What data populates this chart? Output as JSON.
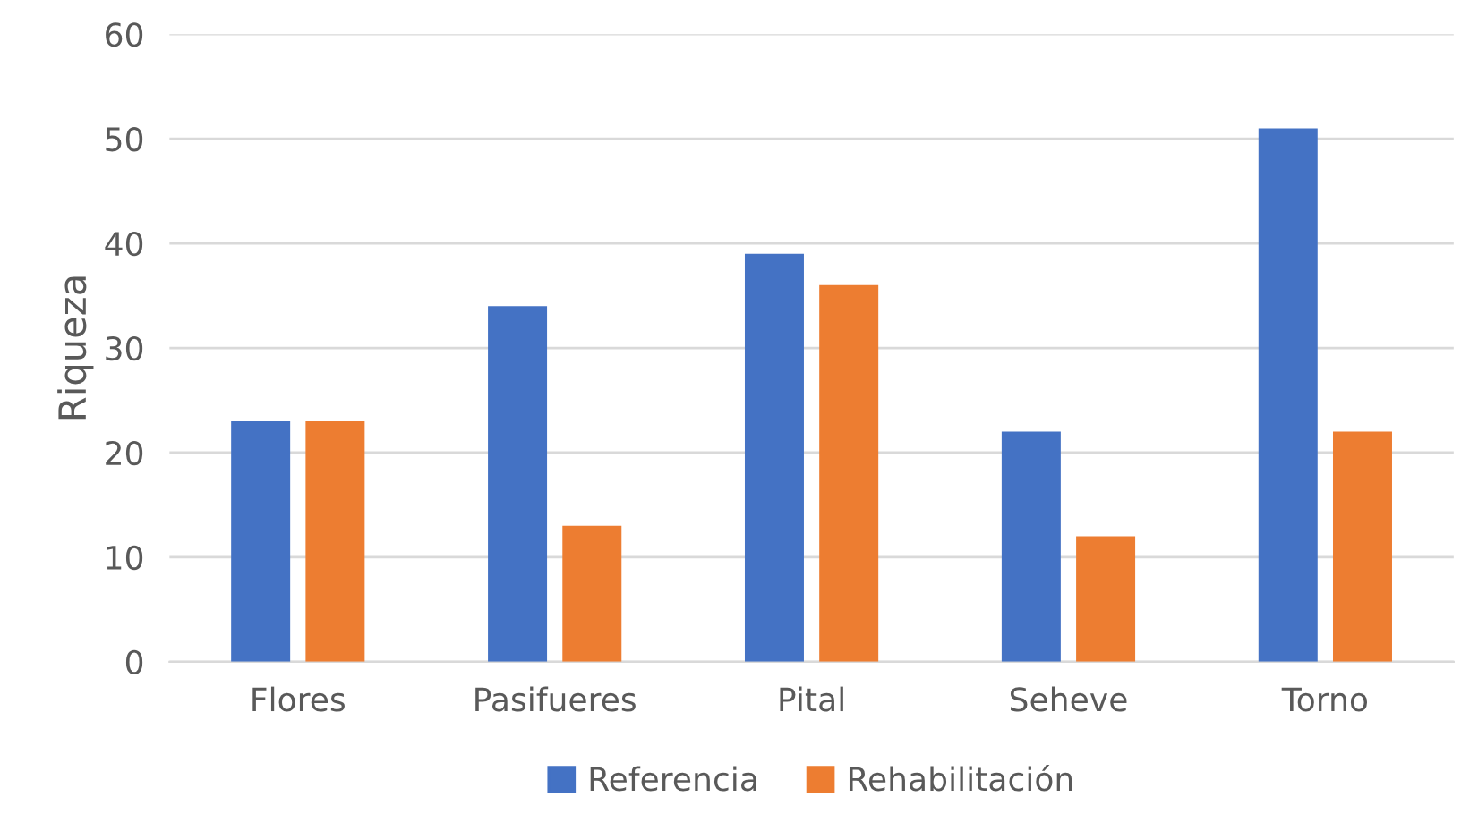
{
  "chart_data": {
    "type": "bar",
    "ylabel": "Riqueza",
    "categories": [
      "Flores",
      "Pasifueres",
      "Pital",
      "Seheve",
      "Torno"
    ],
    "series": [
      {
        "name": "Referencia",
        "color": "#4472c4",
        "values": [
          23,
          34,
          39,
          22,
          51
        ]
      },
      {
        "name": "Rehabilitación",
        "color": "#ed7d31",
        "values": [
          23,
          13,
          36,
          12,
          22
        ]
      }
    ],
    "ylim": [
      0,
      60
    ],
    "yticks": [
      0,
      10,
      20,
      30,
      40,
      50,
      60
    ],
    "grid": "y",
    "legend": "bottom"
  }
}
